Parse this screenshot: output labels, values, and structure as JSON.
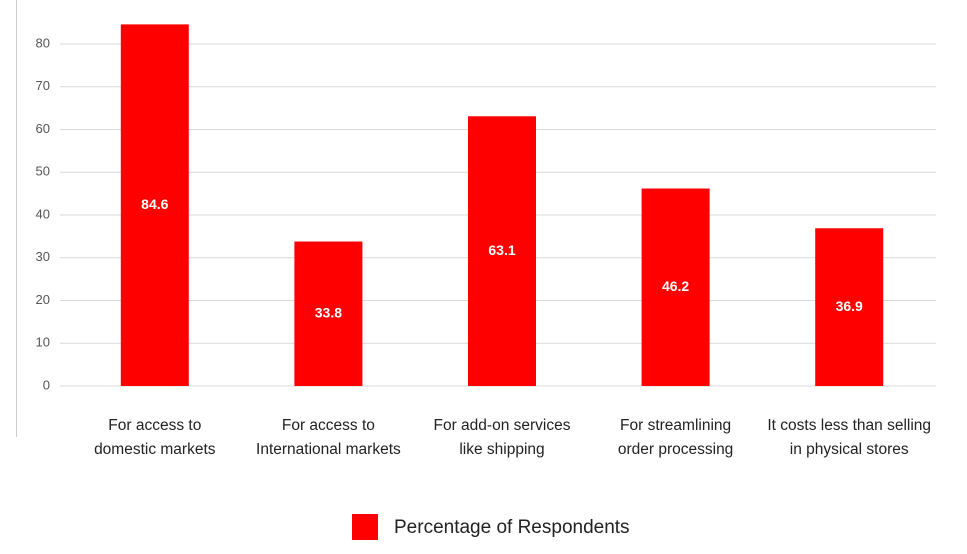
{
  "chart_data": {
    "type": "bar",
    "categories": [
      [
        "For access to",
        "domestic markets"
      ],
      [
        "For access to",
        "International markets"
      ],
      [
        "For add-on services",
        "like shipping"
      ],
      [
        "For streamlining",
        "order processing"
      ],
      [
        "It costs less than selling",
        "in physical stores"
      ]
    ],
    "series": [
      {
        "name": "Percentage of Respondents",
        "color": "#ff0000",
        "values": [
          84.6,
          33.8,
          63.1,
          46.2,
          36.9
        ]
      }
    ],
    "ylim": [
      0,
      90
    ],
    "yticks": [
      0,
      10,
      20,
      30,
      40,
      50,
      60,
      70,
      80
    ],
    "grid": true,
    "legend": "bottom"
  }
}
